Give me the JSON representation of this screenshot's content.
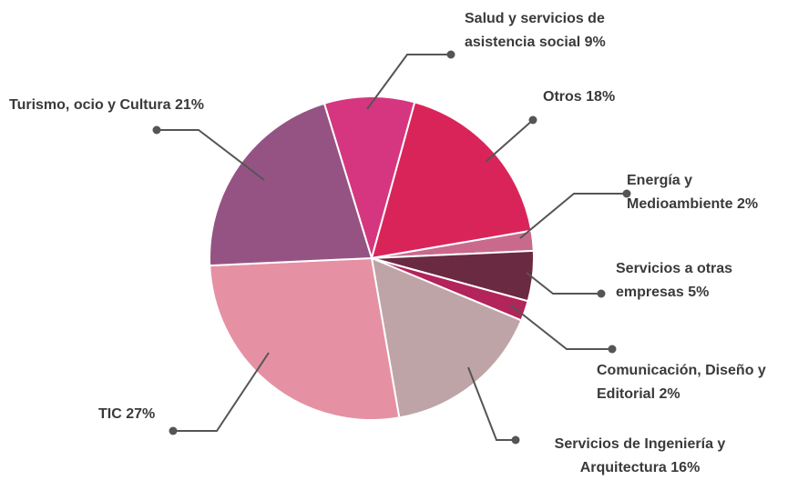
{
  "chart_data": {
    "type": "pie",
    "categories": [
      "Salud y servicios de asistencia social",
      "Otros",
      "Energía y Medioambiente",
      "Servicios a otras empresas",
      "Comunicación, Diseño y Editorial",
      "Servicios de Ingeniería y Arquitectura",
      "TIC",
      "Turismo, ocio y Cultura"
    ],
    "values": [
      9,
      18,
      2,
      5,
      2,
      16,
      27,
      21
    ],
    "value_labels": [
      "9%",
      "18%",
      "2%",
      "5%",
      "2%",
      "16%",
      "27%",
      "21%"
    ],
    "colors": [
      "#d6367f",
      "#d9245a",
      "#c96a8c",
      "#6a2a41",
      "#b3245a",
      "#bfa4a7",
      "#e591a3",
      "#955384"
    ]
  }
}
